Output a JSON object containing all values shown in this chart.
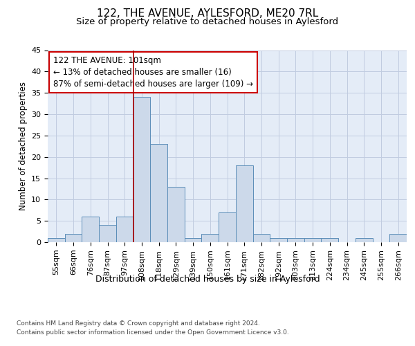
{
  "title_line1": "122, THE AVENUE, AYLESFORD, ME20 7RL",
  "title_line2": "Size of property relative to detached houses in Aylesford",
  "xlabel": "Distribution of detached houses by size in Aylesford",
  "ylabel": "Number of detached properties",
  "categories": [
    "55sqm",
    "66sqm",
    "76sqm",
    "87sqm",
    "97sqm",
    "108sqm",
    "118sqm",
    "129sqm",
    "139sqm",
    "150sqm",
    "161sqm",
    "171sqm",
    "182sqm",
    "192sqm",
    "203sqm",
    "213sqm",
    "224sqm",
    "234sqm",
    "245sqm",
    "255sqm",
    "266sqm"
  ],
  "values": [
    1,
    2,
    6,
    4,
    6,
    34,
    23,
    13,
    1,
    2,
    7,
    18,
    2,
    1,
    1,
    1,
    1,
    0,
    1,
    0,
    2
  ],
  "bar_color": "#ccd9ea",
  "bar_edge_color": "#5b8db8",
  "vline_x": 4.5,
  "vline_color": "#aa0000",
  "annotation_line1": "122 THE AVENUE: 101sqm",
  "annotation_line2": "← 13% of detached houses are smaller (16)",
  "annotation_line3": "87% of semi-detached houses are larger (109) →",
  "annotation_box_color": "#ffffff",
  "annotation_box_edge": "#cc0000",
  "ylim": [
    0,
    45
  ],
  "yticks": [
    0,
    5,
    10,
    15,
    20,
    25,
    30,
    35,
    40,
    45
  ],
  "grid_color": "#c0cce0",
  "bg_color": "#e4ecf7",
  "footer_line1": "Contains HM Land Registry data © Crown copyright and database right 2024.",
  "footer_line2": "Contains public sector information licensed under the Open Government Licence v3.0.",
  "title_fontsize": 11,
  "subtitle_fontsize": 9.5,
  "xlabel_fontsize": 9,
  "ylabel_fontsize": 8.5,
  "tick_fontsize": 8,
  "annotation_fontsize": 8.5,
  "footer_fontsize": 6.5
}
